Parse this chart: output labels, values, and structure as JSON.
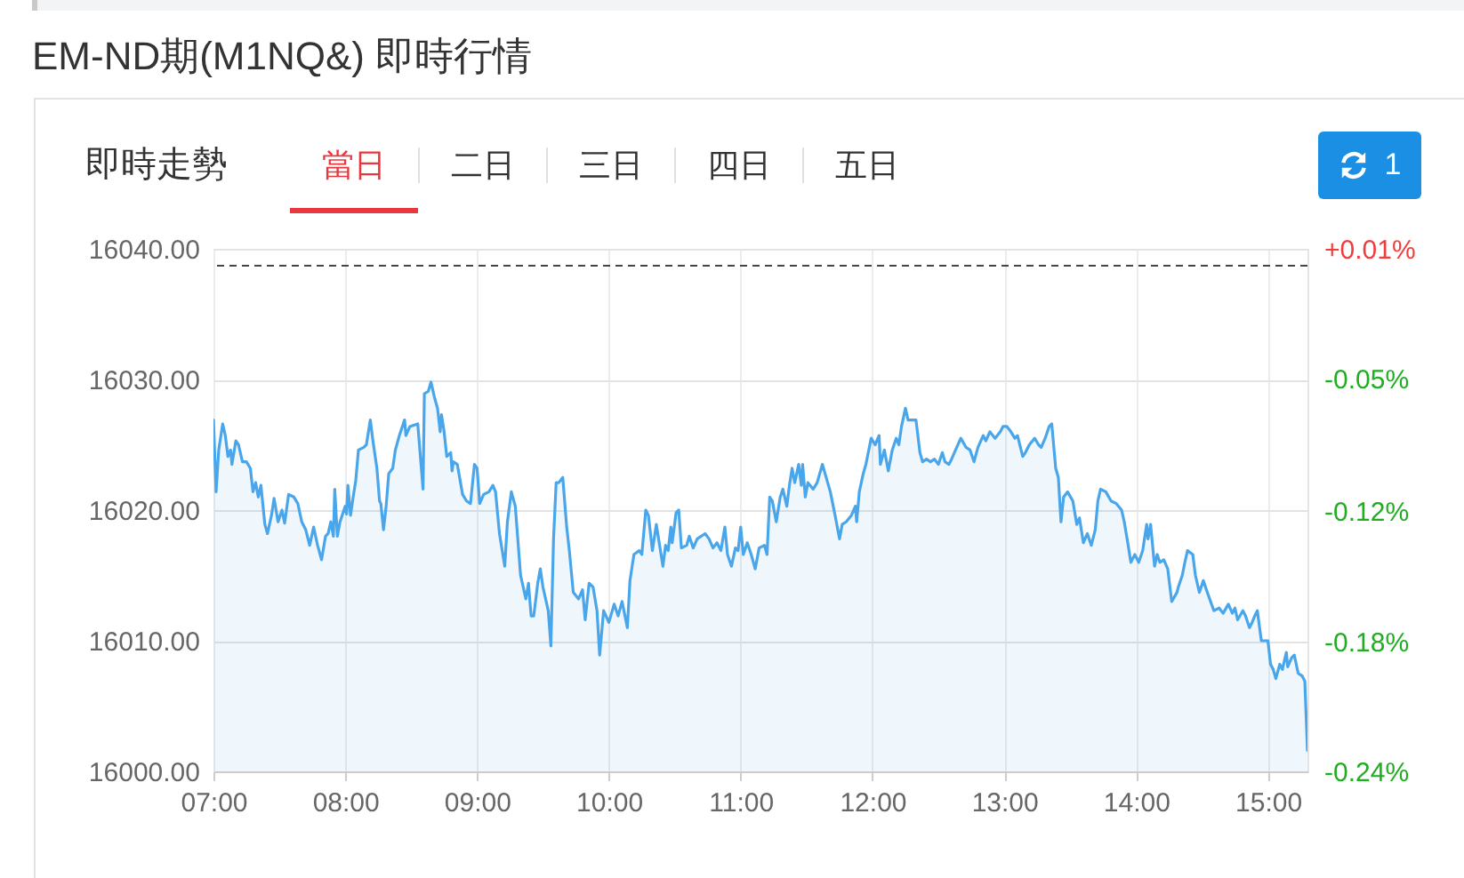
{
  "chart_data": {
    "type": "area",
    "title": "EM-ND期(M1NQ&) 即時行情",
    "subtitle": "即時走勢",
    "annotations": [
      "當日",
      "二日",
      "三日",
      "四日",
      "五日",
      "1"
    ],
    "x": [
      7.0,
      7.02,
      7.04,
      7.07,
      7.09,
      7.11,
      7.13,
      7.14,
      7.17,
      7.19,
      7.22,
      7.25,
      7.28,
      7.3,
      7.32,
      7.34,
      7.36,
      7.39,
      7.41,
      7.44,
      7.46,
      7.49,
      7.52,
      7.54,
      7.57,
      7.61,
      7.64,
      7.67,
      7.7,
      7.73,
      7.76,
      7.79,
      7.82,
      7.85,
      7.87,
      7.89,
      7.91,
      7.92,
      7.94,
      7.96,
      8.0,
      8.01,
      8.02,
      8.04,
      8.06,
      8.08,
      8.1,
      8.14,
      8.16,
      8.19,
      8.21,
      8.24,
      8.26,
      8.27,
      8.29,
      8.31,
      8.33,
      8.36,
      8.38,
      8.41,
      8.45,
      8.46,
      8.49,
      8.55,
      8.59,
      8.6,
      8.63,
      8.65,
      8.68,
      8.7,
      8.72,
      8.73,
      8.75,
      8.77,
      8.8,
      8.81,
      8.82,
      8.85,
      8.89,
      8.92,
      8.95,
      8.98,
      9.0,
      9.02,
      9.05,
      9.09,
      9.12,
      9.14,
      9.17,
      9.21,
      9.23,
      9.26,
      9.29,
      9.33,
      9.37,
      9.39,
      9.41,
      9.43,
      9.46,
      9.48,
      9.5,
      9.54,
      9.56,
      9.58,
      9.6,
      9.62,
      9.65,
      9.68,
      9.7,
      9.73,
      9.77,
      9.8,
      9.82,
      9.85,
      9.88,
      9.91,
      9.93,
      9.96,
      10.0,
      10.04,
      10.07,
      10.1,
      10.14,
      10.16,
      10.19,
      10.23,
      10.25,
      10.28,
      10.3,
      10.33,
      10.36,
      10.41,
      10.43,
      10.45,
      10.47,
      10.48,
      10.51,
      10.53,
      10.55,
      10.59,
      10.61,
      10.64,
      10.67,
      10.73,
      10.76,
      10.79,
      10.82,
      10.85,
      10.88,
      10.9,
      10.93,
      10.96,
      10.98,
      11.0,
      11.02,
      11.05,
      11.08,
      11.11,
      11.14,
      11.18,
      11.2,
      11.22,
      11.24,
      11.27,
      11.3,
      11.32,
      11.35,
      11.37,
      11.39,
      11.41,
      11.44,
      11.46,
      11.47,
      11.49,
      11.51,
      11.55,
      11.58,
      11.62,
      11.64,
      11.68,
      11.72,
      11.75,
      11.77,
      11.8,
      11.84,
      11.87,
      11.88,
      11.9,
      11.93,
      11.95,
      11.99,
      12.02,
      12.05,
      12.06,
      12.09,
      12.12,
      12.15,
      12.18,
      12.2,
      12.22,
      12.25,
      12.27,
      12.33,
      12.36,
      12.38,
      12.41,
      12.44,
      12.47,
      12.5,
      12.53,
      12.55,
      12.58,
      12.6,
      12.63,
      12.67,
      12.71,
      12.74,
      12.77,
      12.8,
      12.84,
      12.86,
      12.89,
      12.93,
      12.97,
      12.99,
      13.02,
      13.05,
      13.08,
      13.1,
      13.11,
      13.14,
      13.16,
      13.19,
      13.23,
      13.26,
      13.28,
      13.31,
      13.34,
      13.36,
      13.39,
      13.41,
      13.43,
      13.45,
      13.48,
      13.52,
      13.55,
      13.57,
      13.6,
      13.63,
      13.66,
      13.69,
      13.71,
      13.73,
      13.77,
      13.81,
      13.85,
      13.89,
      13.91,
      13.94,
      13.96,
      13.99,
      14.02,
      14.05,
      14.08,
      14.09,
      14.11,
      14.14,
      14.16,
      14.18,
      14.21,
      14.24,
      14.27,
      14.31,
      14.32,
      14.35,
      14.37,
      14.39,
      14.43,
      14.45,
      14.48,
      14.51,
      14.54,
      14.59,
      14.63,
      14.66,
      14.7,
      14.73,
      14.75,
      14.77,
      14.81,
      14.83,
      14.86,
      14.88,
      14.9,
      14.92,
      14.95,
      14.98,
      15.0,
      15.02,
      15.04,
      15.06,
      15.09,
      15.11,
      15.13,
      15.14,
      15.15,
      15.18,
      15.2,
      15.23,
      15.26,
      15.28,
      15.3
    ],
    "values": [
      16026.9,
      16021.4,
      16024.6,
      16026.6,
      16025.7,
      16024.1,
      16024.6,
      16023.5,
      16025.3,
      16025.0,
      16023.7,
      16023.7,
      16023.2,
      16021.4,
      16022.1,
      16021.0,
      16021.9,
      16018.9,
      16018.2,
      16019.6,
      16020.9,
      16019.1,
      16020.0,
      16019.0,
      16021.2,
      16021.0,
      16020.5,
      16019.1,
      16018.5,
      16017.3,
      16018.7,
      16017.3,
      16016.2,
      16018.0,
      16018.2,
      16019.1,
      16018.0,
      16021.6,
      16018.0,
      16019.1,
      16020.3,
      16019.7,
      16021.9,
      16019.6,
      16021.0,
      16022.3,
      16024.6,
      16024.8,
      16025.0,
      16026.9,
      16025.3,
      16023.2,
      16020.7,
      16020.5,
      16018.5,
      16020.3,
      16022.8,
      16023.2,
      16024.6,
      16025.7,
      16026.9,
      16025.7,
      16026.4,
      16026.6,
      16021.6,
      16028.9,
      16029.1,
      16029.8,
      16028.5,
      16027.8,
      16026.0,
      16027.3,
      16026.0,
      16024.1,
      16024.4,
      16023.0,
      16023.7,
      16023.5,
      16021.2,
      16020.7,
      16020.5,
      16023.5,
      16023.2,
      16020.5,
      16021.2,
      16021.4,
      16021.9,
      16021.4,
      16018.2,
      16015.7,
      16019.1,
      16021.4,
      16020.3,
      16015.0,
      16013.2,
      16014.4,
      16011.9,
      16011.9,
      16014.4,
      16015.5,
      16014.1,
      16012.3,
      16009.6,
      16017.8,
      16022.1,
      16022.1,
      16022.5,
      16018.7,
      16016.9,
      16013.7,
      16013.2,
      16013.9,
      16011.6,
      16014.4,
      16014.1,
      16012.3,
      16008.9,
      16012.3,
      16011.4,
      16012.8,
      16011.9,
      16013.0,
      16011.0,
      16014.6,
      16016.6,
      16016.9,
      16016.6,
      16020.0,
      16019.6,
      16016.9,
      16018.9,
      16015.7,
      16017.3,
      16016.9,
      16018.7,
      16017.5,
      16019.8,
      16020.0,
      16017.1,
      16017.3,
      16018.0,
      16017.1,
      16017.8,
      16018.2,
      16017.8,
      16017.1,
      16017.5,
      16016.9,
      16018.7,
      16016.6,
      16015.7,
      16017.1,
      16016.9,
      16018.7,
      16016.6,
      16017.5,
      16016.6,
      16015.5,
      16017.1,
      16017.3,
      16016.6,
      16021.0,
      16020.7,
      16019.1,
      16021.0,
      16021.6,
      16020.3,
      16021.9,
      16023.2,
      16022.1,
      16023.5,
      16021.9,
      16023.5,
      16021.0,
      16022.1,
      16021.6,
      16022.1,
      16023.5,
      16022.8,
      16021.4,
      16019.4,
      16017.8,
      16018.9,
      16019.1,
      16019.6,
      16020.3,
      16019.1,
      16021.4,
      16022.8,
      16023.5,
      16025.5,
      16025.0,
      16025.7,
      16023.5,
      16024.6,
      16023.0,
      16024.6,
      16025.5,
      16025.0,
      16026.4,
      16027.8,
      16026.9,
      16026.9,
      16024.4,
      16023.7,
      16023.9,
      16023.7,
      16023.9,
      16023.5,
      16024.4,
      16023.7,
      16023.5,
      16023.9,
      16024.6,
      16025.5,
      16024.8,
      16024.6,
      16023.7,
      16024.8,
      16025.7,
      16025.3,
      16026.0,
      16025.5,
      16026.0,
      16026.4,
      16026.4,
      16026.0,
      16025.5,
      16025.7,
      16025.3,
      16024.1,
      16024.4,
      16025.0,
      16025.5,
      16025.0,
      16024.8,
      16025.5,
      16026.4,
      16026.6,
      16023.2,
      16022.5,
      16019.1,
      16021.0,
      16021.4,
      16020.7,
      16018.9,
      16019.4,
      16017.5,
      16018.2,
      16017.3,
      16018.5,
      16020.7,
      16021.6,
      16021.4,
      16020.7,
      16020.5,
      16020.0,
      16019.1,
      16017.3,
      16016.0,
      16016.6,
      16016.0,
      16016.9,
      16018.9,
      16017.8,
      16018.9,
      16015.7,
      16016.6,
      16016.0,
      16016.2,
      16015.5,
      16013.0,
      16013.7,
      16014.1,
      16015.0,
      16016.0,
      16016.9,
      16016.6,
      16015.0,
      16013.7,
      16014.6,
      16013.7,
      16012.3,
      16012.5,
      16012.1,
      16012.8,
      16012.1,
      16012.5,
      16011.6,
      16012.3,
      16011.9,
      16011.0,
      16011.4,
      16011.9,
      16012.3,
      16010.0,
      16010.0,
      16010.0,
      16008.2,
      16007.8,
      16007.1,
      16008.2,
      16007.8,
      16008.7,
      16009.1,
      16008.0,
      16008.7,
      16008.9,
      16007.5,
      16007.3,
      16006.9,
      16001.6
    ],
    "color": "#4aa6ea",
    "xlim": [
      7,
      15.3
    ],
    "xticks": [
      {
        "value": 7,
        "label": "07:00"
      },
      {
        "value": 8,
        "label": "08:00"
      },
      {
        "value": 9,
        "label": "09:00"
      },
      {
        "value": 10,
        "label": "10:00"
      },
      {
        "value": 11,
        "label": "11:00"
      },
      {
        "value": 12,
        "label": "12:00"
      },
      {
        "value": 13,
        "label": "13:00"
      },
      {
        "value": 14,
        "label": "14:00"
      },
      {
        "value": 15,
        "label": "15:00"
      }
    ],
    "ylim": [
      16000,
      16040
    ],
    "yticks": [
      {
        "value": 16000,
        "label": "16000.00"
      },
      {
        "value": 16010,
        "label": "16010.00"
      },
      {
        "value": 16020,
        "label": "16020.00"
      },
      {
        "value": 16030,
        "label": "16030.00"
      },
      {
        "value": 16040,
        "label": "16040.00"
      }
    ],
    "y2lim": [
      -0.241,
      0.008
    ],
    "y2ticks": [
      {
        "value": -0.241,
        "label": "-0.24%"
      },
      {
        "value": -0.179,
        "label": "-0.18%"
      },
      {
        "value": -0.117,
        "label": "-0.12%"
      },
      {
        "value": -0.054,
        "label": "-0.05%"
      },
      {
        "value": 0.008,
        "label": "+0.01%"
      }
    ],
    "ref_lines": [
      {
        "axis": "y2",
        "value": 0,
        "line_style": "dashed",
        "color": "#444444"
      }
    ],
    "grid": true
  }
}
